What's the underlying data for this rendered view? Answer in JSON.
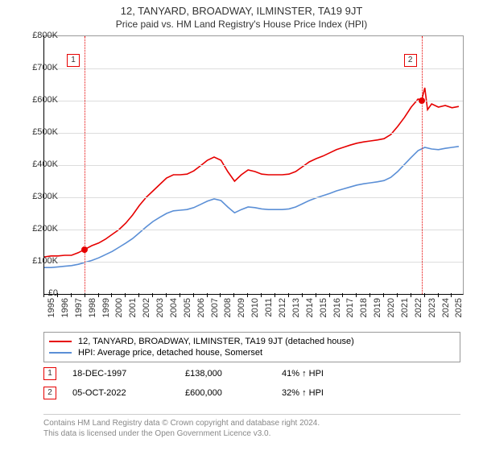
{
  "title": "12, TANYARD, BROADWAY, ILMINSTER, TA19 9JT",
  "subtitle": "Price paid vs. HM Land Registry's House Price Index (HPI)",
  "chart": {
    "type": "line",
    "background_color": "#ffffff",
    "grid_color": "#dddddd",
    "axis_color": "#000000",
    "ylim": [
      0,
      800
    ],
    "ytick_step": 100,
    "y_prefix": "£",
    "y_suffix": "K",
    "xlim": [
      1995,
      2025.8
    ],
    "x_ticks": [
      1995,
      1996,
      1997,
      1998,
      1999,
      2000,
      2001,
      2002,
      2003,
      2004,
      2005,
      2006,
      2007,
      2008,
      2009,
      2010,
      2011,
      2012,
      2013,
      2014,
      2015,
      2016,
      2017,
      2018,
      2019,
      2020,
      2021,
      2022,
      2023,
      2024,
      2025
    ],
    "title_fontsize": 13,
    "label_fontsize": 11,
    "tick_fontsize": 11,
    "line_width": 1.6,
    "marker_box_size": 14,
    "series": [
      {
        "name": "12, TANYARD, BROADWAY, ILMINSTER, TA19 9JT (detached house)",
        "color": "#e60000",
        "data": [
          [
            1995,
            115
          ],
          [
            1995.5,
            118
          ],
          [
            1996,
            118
          ],
          [
            1996.5,
            120
          ],
          [
            1997,
            120
          ],
          [
            1997.5,
            128
          ],
          [
            1997.96,
            138
          ],
          [
            1998.5,
            150
          ],
          [
            1999,
            158
          ],
          [
            1999.5,
            170
          ],
          [
            2000,
            185
          ],
          [
            2000.5,
            200
          ],
          [
            2001,
            220
          ],
          [
            2001.5,
            245
          ],
          [
            2002,
            275
          ],
          [
            2002.5,
            300
          ],
          [
            2003,
            320
          ],
          [
            2003.5,
            340
          ],
          [
            2004,
            360
          ],
          [
            2004.5,
            370
          ],
          [
            2005,
            370
          ],
          [
            2005.5,
            372
          ],
          [
            2006,
            382
          ],
          [
            2006.5,
            398
          ],
          [
            2007,
            415
          ],
          [
            2007.5,
            425
          ],
          [
            2008,
            415
          ],
          [
            2008.5,
            380
          ],
          [
            2009,
            350
          ],
          [
            2009.5,
            370
          ],
          [
            2010,
            385
          ],
          [
            2010.5,
            380
          ],
          [
            2011,
            372
          ],
          [
            2011.5,
            370
          ],
          [
            2012,
            370
          ],
          [
            2012.5,
            370
          ],
          [
            2013,
            372
          ],
          [
            2013.5,
            380
          ],
          [
            2014,
            395
          ],
          [
            2014.5,
            410
          ],
          [
            2015,
            420
          ],
          [
            2015.5,
            428
          ],
          [
            2016,
            438
          ],
          [
            2016.5,
            448
          ],
          [
            2017,
            455
          ],
          [
            2017.5,
            462
          ],
          [
            2018,
            468
          ],
          [
            2018.5,
            472
          ],
          [
            2019,
            475
          ],
          [
            2019.5,
            478
          ],
          [
            2020,
            482
          ],
          [
            2020.5,
            495
          ],
          [
            2021,
            520
          ],
          [
            2021.5,
            548
          ],
          [
            2022,
            580
          ],
          [
            2022.5,
            605
          ],
          [
            2022.76,
            600
          ],
          [
            2023,
            640
          ],
          [
            2023.2,
            572
          ],
          [
            2023.5,
            590
          ],
          [
            2024,
            580
          ],
          [
            2024.5,
            585
          ],
          [
            2025,
            578
          ],
          [
            2025.5,
            582
          ]
        ]
      },
      {
        "name": "HPI: Average price, detached house, Somerset",
        "color": "#5b8fd6",
        "data": [
          [
            1995,
            82
          ],
          [
            1995.5,
            82
          ],
          [
            1996,
            84
          ],
          [
            1996.5,
            86
          ],
          [
            1997,
            88
          ],
          [
            1997.5,
            92
          ],
          [
            1998,
            98
          ],
          [
            1998.5,
            104
          ],
          [
            1999,
            112
          ],
          [
            1999.5,
            122
          ],
          [
            2000,
            132
          ],
          [
            2000.5,
            145
          ],
          [
            2001,
            158
          ],
          [
            2001.5,
            172
          ],
          [
            2002,
            190
          ],
          [
            2002.5,
            208
          ],
          [
            2003,
            225
          ],
          [
            2003.5,
            238
          ],
          [
            2004,
            250
          ],
          [
            2004.5,
            258
          ],
          [
            2005,
            260
          ],
          [
            2005.5,
            262
          ],
          [
            2006,
            268
          ],
          [
            2006.5,
            278
          ],
          [
            2007,
            288
          ],
          [
            2007.5,
            295
          ],
          [
            2008,
            290
          ],
          [
            2008.5,
            270
          ],
          [
            2009,
            252
          ],
          [
            2009.5,
            262
          ],
          [
            2010,
            270
          ],
          [
            2010.5,
            268
          ],
          [
            2011,
            264
          ],
          [
            2011.5,
            262
          ],
          [
            2012,
            262
          ],
          [
            2012.5,
            262
          ],
          [
            2013,
            264
          ],
          [
            2013.5,
            270
          ],
          [
            2014,
            280
          ],
          [
            2014.5,
            290
          ],
          [
            2015,
            298
          ],
          [
            2015.5,
            305
          ],
          [
            2016,
            312
          ],
          [
            2016.5,
            320
          ],
          [
            2017,
            326
          ],
          [
            2017.5,
            332
          ],
          [
            2018,
            338
          ],
          [
            2018.5,
            342
          ],
          [
            2019,
            345
          ],
          [
            2019.5,
            348
          ],
          [
            2020,
            352
          ],
          [
            2020.5,
            362
          ],
          [
            2021,
            380
          ],
          [
            2021.5,
            402
          ],
          [
            2022,
            424
          ],
          [
            2022.5,
            445
          ],
          [
            2023,
            455
          ],
          [
            2023.5,
            450
          ],
          [
            2024,
            448
          ],
          [
            2024.5,
            452
          ],
          [
            2025,
            455
          ],
          [
            2025.5,
            458
          ]
        ]
      }
    ],
    "sale_markers": [
      {
        "n": 1,
        "x": 1997.96,
        "y": 138,
        "color": "#e60000"
      },
      {
        "n": 2,
        "x": 2022.76,
        "y": 600,
        "color": "#e60000"
      }
    ],
    "vlines": [
      {
        "x": 1997.96,
        "color": "#e60000"
      },
      {
        "x": 2022.76,
        "color": "#e60000"
      }
    ]
  },
  "legend": {
    "items": [
      {
        "color": "#e60000",
        "label": "12, TANYARD, BROADWAY, ILMINSTER, TA19 9JT (detached house)"
      },
      {
        "color": "#5b8fd6",
        "label": "HPI: Average price, detached house, Somerset"
      }
    ]
  },
  "sales": [
    {
      "n": 1,
      "color": "#e60000",
      "date": "18-DEC-1997",
      "price": "£138,000",
      "delta": "41% ↑ HPI"
    },
    {
      "n": 2,
      "color": "#e60000",
      "date": "05-OCT-2022",
      "price": "£600,000",
      "delta": "32% ↑ HPI"
    }
  ],
  "footer": {
    "line1": "Contains HM Land Registry data © Crown copyright and database right 2024.",
    "line2": "This data is licensed under the Open Government Licence v3.0."
  }
}
